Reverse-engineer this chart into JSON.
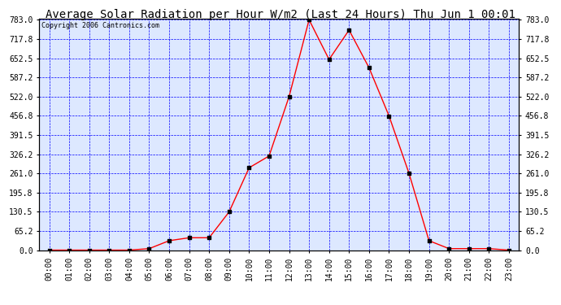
{
  "title": "Average Solar Radiation per Hour W/m2 (Last 24 Hours) Thu Jun 1 00:01",
  "copyright": "Copyright 2006 Cantronics.com",
  "hours": [
    "00:00",
    "01:00",
    "02:00",
    "03:00",
    "04:00",
    "05:00",
    "06:00",
    "07:00",
    "08:00",
    "09:00",
    "10:00",
    "11:00",
    "12:00",
    "13:00",
    "14:00",
    "15:00",
    "16:00",
    "17:00",
    "18:00",
    "19:00",
    "20:00",
    "21:00",
    "22:00",
    "23:00"
  ],
  "values": [
    0,
    0,
    0,
    0,
    0,
    5,
    32,
    42,
    42,
    130,
    280,
    320,
    522,
    783,
    648,
    748,
    620,
    456,
    261,
    32,
    5,
    5,
    5,
    0
  ],
  "yticks": [
    0.0,
    65.2,
    130.5,
    195.8,
    261.0,
    326.2,
    391.5,
    456.8,
    522.0,
    587.2,
    652.5,
    717.8,
    783.0
  ],
  "line_color": "red",
  "marker_color": "black",
  "bg_color": "white",
  "plot_bg_color": "#dde8ff",
  "grid_color": "blue",
  "title_fontsize": 10,
  "copyright_fontsize": 6,
  "tick_fontsize": 7,
  "ymin": 0.0,
  "ymax": 783.0
}
